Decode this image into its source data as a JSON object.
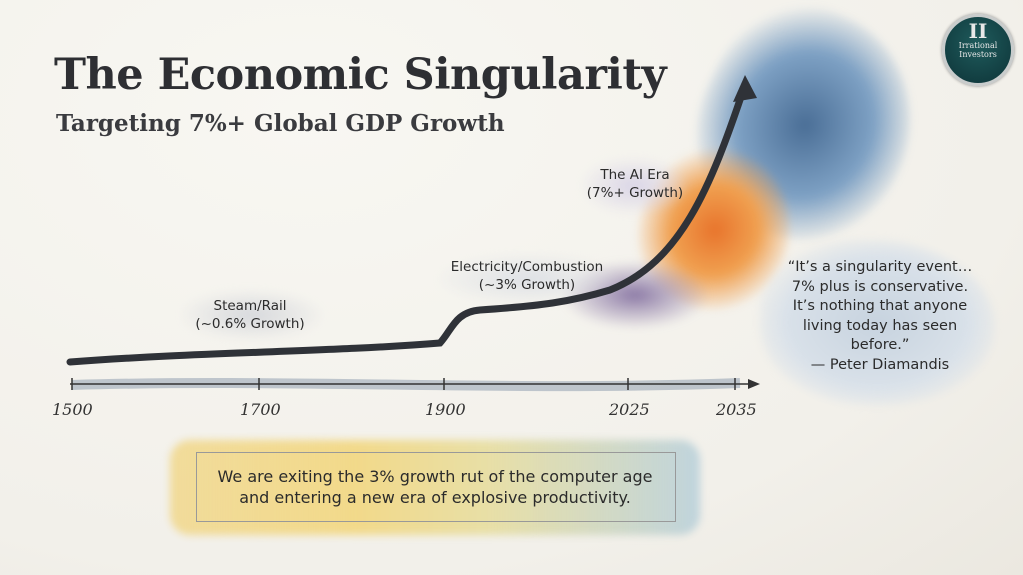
{
  "header": {
    "title": "The Economic Singularity",
    "subtitle": "Targeting 7%+ Global GDP Growth"
  },
  "logo": {
    "mark": "II",
    "name_line1": "Irrational",
    "name_line2": "Investors"
  },
  "timeline": {
    "ticks": [
      "1500",
      "1700",
      "1900",
      "2025",
      "2035"
    ]
  },
  "eras": [
    {
      "line1": "Steam/Rail",
      "line2": "(~0.6% Growth)"
    },
    {
      "line1": "Electricity/Combustion",
      "line2": "(~3% Growth)"
    },
    {
      "line1": "The AI Era",
      "line2": "(7%+ Growth)"
    }
  ],
  "quote": {
    "lines": [
      "“It’s a singularity event…",
      "7% plus is conservative.",
      "It’s nothing that anyone",
      "living today has seen",
      "before.”"
    ],
    "attribution": "— Peter Diamandis"
  },
  "banner": {
    "line1": "We are exiting the 3% growth rut of the computer age",
    "line2": "and entering a new era of explosive productivity."
  },
  "colors": {
    "ink": "#2e2f33",
    "splash_blue": "#3f5f86",
    "splash_orange": "#e8742c",
    "splash_yellow": "#f1c75a"
  }
}
